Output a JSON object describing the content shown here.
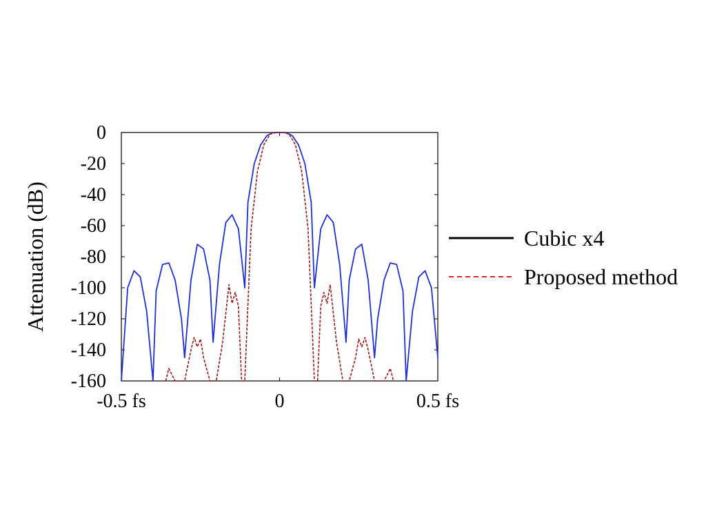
{
  "chart_data": {
    "type": "line",
    "title": "",
    "xlabel": "",
    "ylabel": "Attenuation (dB)",
    "x_ticks": [
      "-0.5 fs",
      "0",
      "0.5 fs"
    ],
    "x_tick_values": [
      -0.5,
      0,
      0.5
    ],
    "y_ticks": [
      "0",
      "-20",
      "-40",
      "-60",
      "-80",
      "-100",
      "-120",
      "-140",
      "-160"
    ],
    "y_tick_values": [
      0,
      -20,
      -40,
      -60,
      -80,
      -100,
      -120,
      -140,
      -160
    ],
    "xlim": [
      -0.5,
      0.5
    ],
    "ylim": [
      -160,
      0
    ],
    "grid": false,
    "legend_placement": "right, outside plot",
    "series": [
      {
        "name": "Cubic x4",
        "legend_color": "#000000",
        "line_color": "#1f2fd6",
        "line_style": "solid",
        "x": [
          -0.5,
          -0.48,
          -0.46,
          -0.44,
          -0.42,
          -0.4,
          -0.39,
          -0.37,
          -0.35,
          -0.33,
          -0.31,
          -0.3,
          -0.28,
          -0.26,
          -0.24,
          -0.22,
          -0.21,
          -0.19,
          -0.17,
          -0.15,
          -0.13,
          -0.11,
          -0.1,
          -0.08,
          -0.06,
          -0.04,
          -0.02,
          0,
          0.02,
          0.04,
          0.06,
          0.08,
          0.1,
          0.11,
          0.13,
          0.15,
          0.17,
          0.19,
          0.21,
          0.22,
          0.24,
          0.26,
          0.28,
          0.3,
          0.31,
          0.33,
          0.35,
          0.37,
          0.39,
          0.4,
          0.42,
          0.44,
          0.46,
          0.48,
          0.5
        ],
        "values": [
          -160,
          -100,
          -89,
          -93,
          -115,
          -160,
          -102,
          -85,
          -84,
          -95,
          -120,
          -145,
          -95,
          -72,
          -75,
          -95,
          -135,
          -85,
          -58,
          -53,
          -62,
          -100,
          -45,
          -20,
          -8,
          -2,
          0,
          0,
          0,
          -2,
          -8,
          -20,
          -45,
          -100,
          -62,
          -53,
          -58,
          -85,
          -135,
          -95,
          -75,
          -72,
          -95,
          -145,
          -120,
          -95,
          -84,
          -85,
          -102,
          -160,
          -115,
          -93,
          -89,
          -100,
          -145
        ]
      },
      {
        "name": "Proposed method",
        "legend_color": "#e0261f",
        "line_color": "#a01515",
        "line_style": "dashed",
        "x": [
          -0.36,
          -0.35,
          -0.34,
          -0.33,
          -0.3,
          -0.28,
          -0.27,
          -0.26,
          -0.25,
          -0.24,
          -0.22,
          -0.2,
          -0.18,
          -0.16,
          -0.15,
          -0.14,
          -0.13,
          -0.12,
          -0.11,
          -0.09,
          -0.07,
          -0.05,
          -0.03,
          -0.01,
          0.01,
          0.03,
          0.05,
          0.07,
          0.09,
          0.11,
          0.12,
          0.13,
          0.14,
          0.15,
          0.16,
          0.18,
          0.2,
          0.22,
          0.24,
          0.25,
          0.26,
          0.27,
          0.28,
          0.3,
          0.33,
          0.34,
          0.35,
          0.36
        ],
        "values": [
          -160,
          -152,
          -156,
          -160,
          -160,
          -140,
          -132,
          -138,
          -133,
          -145,
          -160,
          -160,
          -135,
          -98,
          -110,
          -103,
          -112,
          -160,
          -160,
          -62,
          -25,
          -8,
          -1,
          0,
          0,
          -1,
          -8,
          -25,
          -62,
          -160,
          -160,
          -112,
          -103,
          -110,
          -98,
          -135,
          -160,
          -160,
          -145,
          -133,
          -138,
          -132,
          -140,
          -160,
          -160,
          -156,
          -152,
          -160
        ]
      }
    ]
  }
}
